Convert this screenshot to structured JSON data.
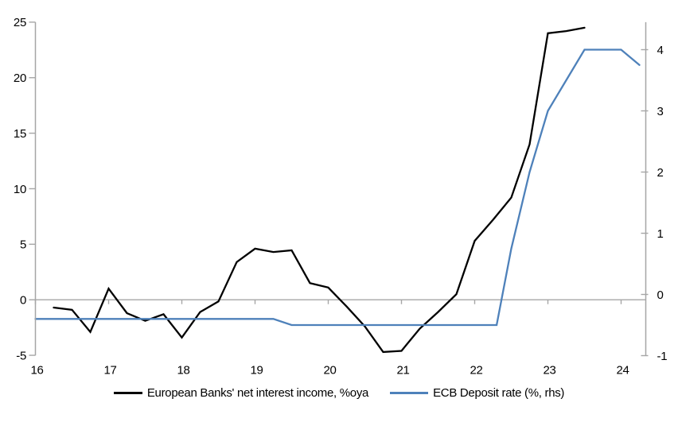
{
  "chart_data": {
    "type": "line",
    "title": "",
    "legend_position": "bottom",
    "colors": {
      "nii_line": "#000000",
      "ecb_line": "#4e81ba",
      "axis": "#a6a6a6",
      "zero_line": "#a6a6a6"
    },
    "x_axis": {
      "ticks": [
        16,
        17,
        18,
        19,
        20,
        21,
        22,
        23,
        24
      ],
      "tick_labels": [
        "16",
        "17",
        "18",
        "19",
        "20",
        "21",
        "22",
        "23",
        "24"
      ],
      "range": [
        16,
        24.35
      ]
    },
    "left_axis": {
      "ticks": [
        -5,
        0,
        5,
        10,
        15,
        20,
        25
      ],
      "tick_labels": [
        "-5",
        "0",
        "5",
        "10",
        "15",
        "20",
        "25"
      ],
      "range": [
        -5,
        25
      ]
    },
    "right_axis": {
      "ticks": [
        -1,
        0,
        1,
        2,
        3,
        4
      ],
      "tick_labels": [
        "-1",
        "0",
        "1",
        "2",
        "3",
        "4"
      ],
      "range": [
        -1,
        4.45
      ]
    },
    "series": [
      {
        "name": "European Banks' net interest income, %oya",
        "axis": "left",
        "color": "#000000",
        "x": [
          16.25,
          16.5,
          16.75,
          17.0,
          17.25,
          17.5,
          17.75,
          18.0,
          18.25,
          18.5,
          18.75,
          19.0,
          19.25,
          19.5,
          19.75,
          20.0,
          20.25,
          20.5,
          20.75,
          21.0,
          21.25,
          21.5,
          21.75,
          22.0,
          22.25,
          22.5,
          22.75,
          23.0,
          23.25,
          23.5
        ],
        "values": [
          -0.7,
          -0.9,
          -2.9,
          1.0,
          -1.2,
          -1.9,
          -1.3,
          -3.4,
          -1.1,
          -0.15,
          3.4,
          4.6,
          4.3,
          4.45,
          1.5,
          1.1,
          -0.6,
          -2.4,
          -4.7,
          -4.6,
          -2.6,
          -1.1,
          0.5,
          5.3,
          7.2,
          9.2,
          14.0,
          24.0,
          24.2,
          24.5
        ]
      },
      {
        "name": "ECB Deposit rate (%, rhs)",
        "axis": "right",
        "color": "#4e81ba",
        "x": [
          16.0,
          16.25,
          16.5,
          16.75,
          17.0,
          17.25,
          17.5,
          17.75,
          18.0,
          18.25,
          18.5,
          18.75,
          19.0,
          19.25,
          19.5,
          19.75,
          20.0,
          20.25,
          20.5,
          20.75,
          21.0,
          21.25,
          21.5,
          21.75,
          22.0,
          22.3,
          22.5,
          22.75,
          23.0,
          23.25,
          23.5,
          23.75,
          24.0,
          24.25
        ],
        "values": [
          -0.4,
          -0.4,
          -0.4,
          -0.4,
          -0.4,
          -0.4,
          -0.4,
          -0.4,
          -0.4,
          -0.4,
          -0.4,
          -0.4,
          -0.4,
          -0.4,
          -0.5,
          -0.5,
          -0.5,
          -0.5,
          -0.5,
          -0.5,
          -0.5,
          -0.5,
          -0.5,
          -0.5,
          -0.5,
          -0.5,
          0.75,
          2.0,
          3.0,
          3.5,
          4.0,
          4.0,
          4.0,
          3.75
        ]
      }
    ]
  }
}
